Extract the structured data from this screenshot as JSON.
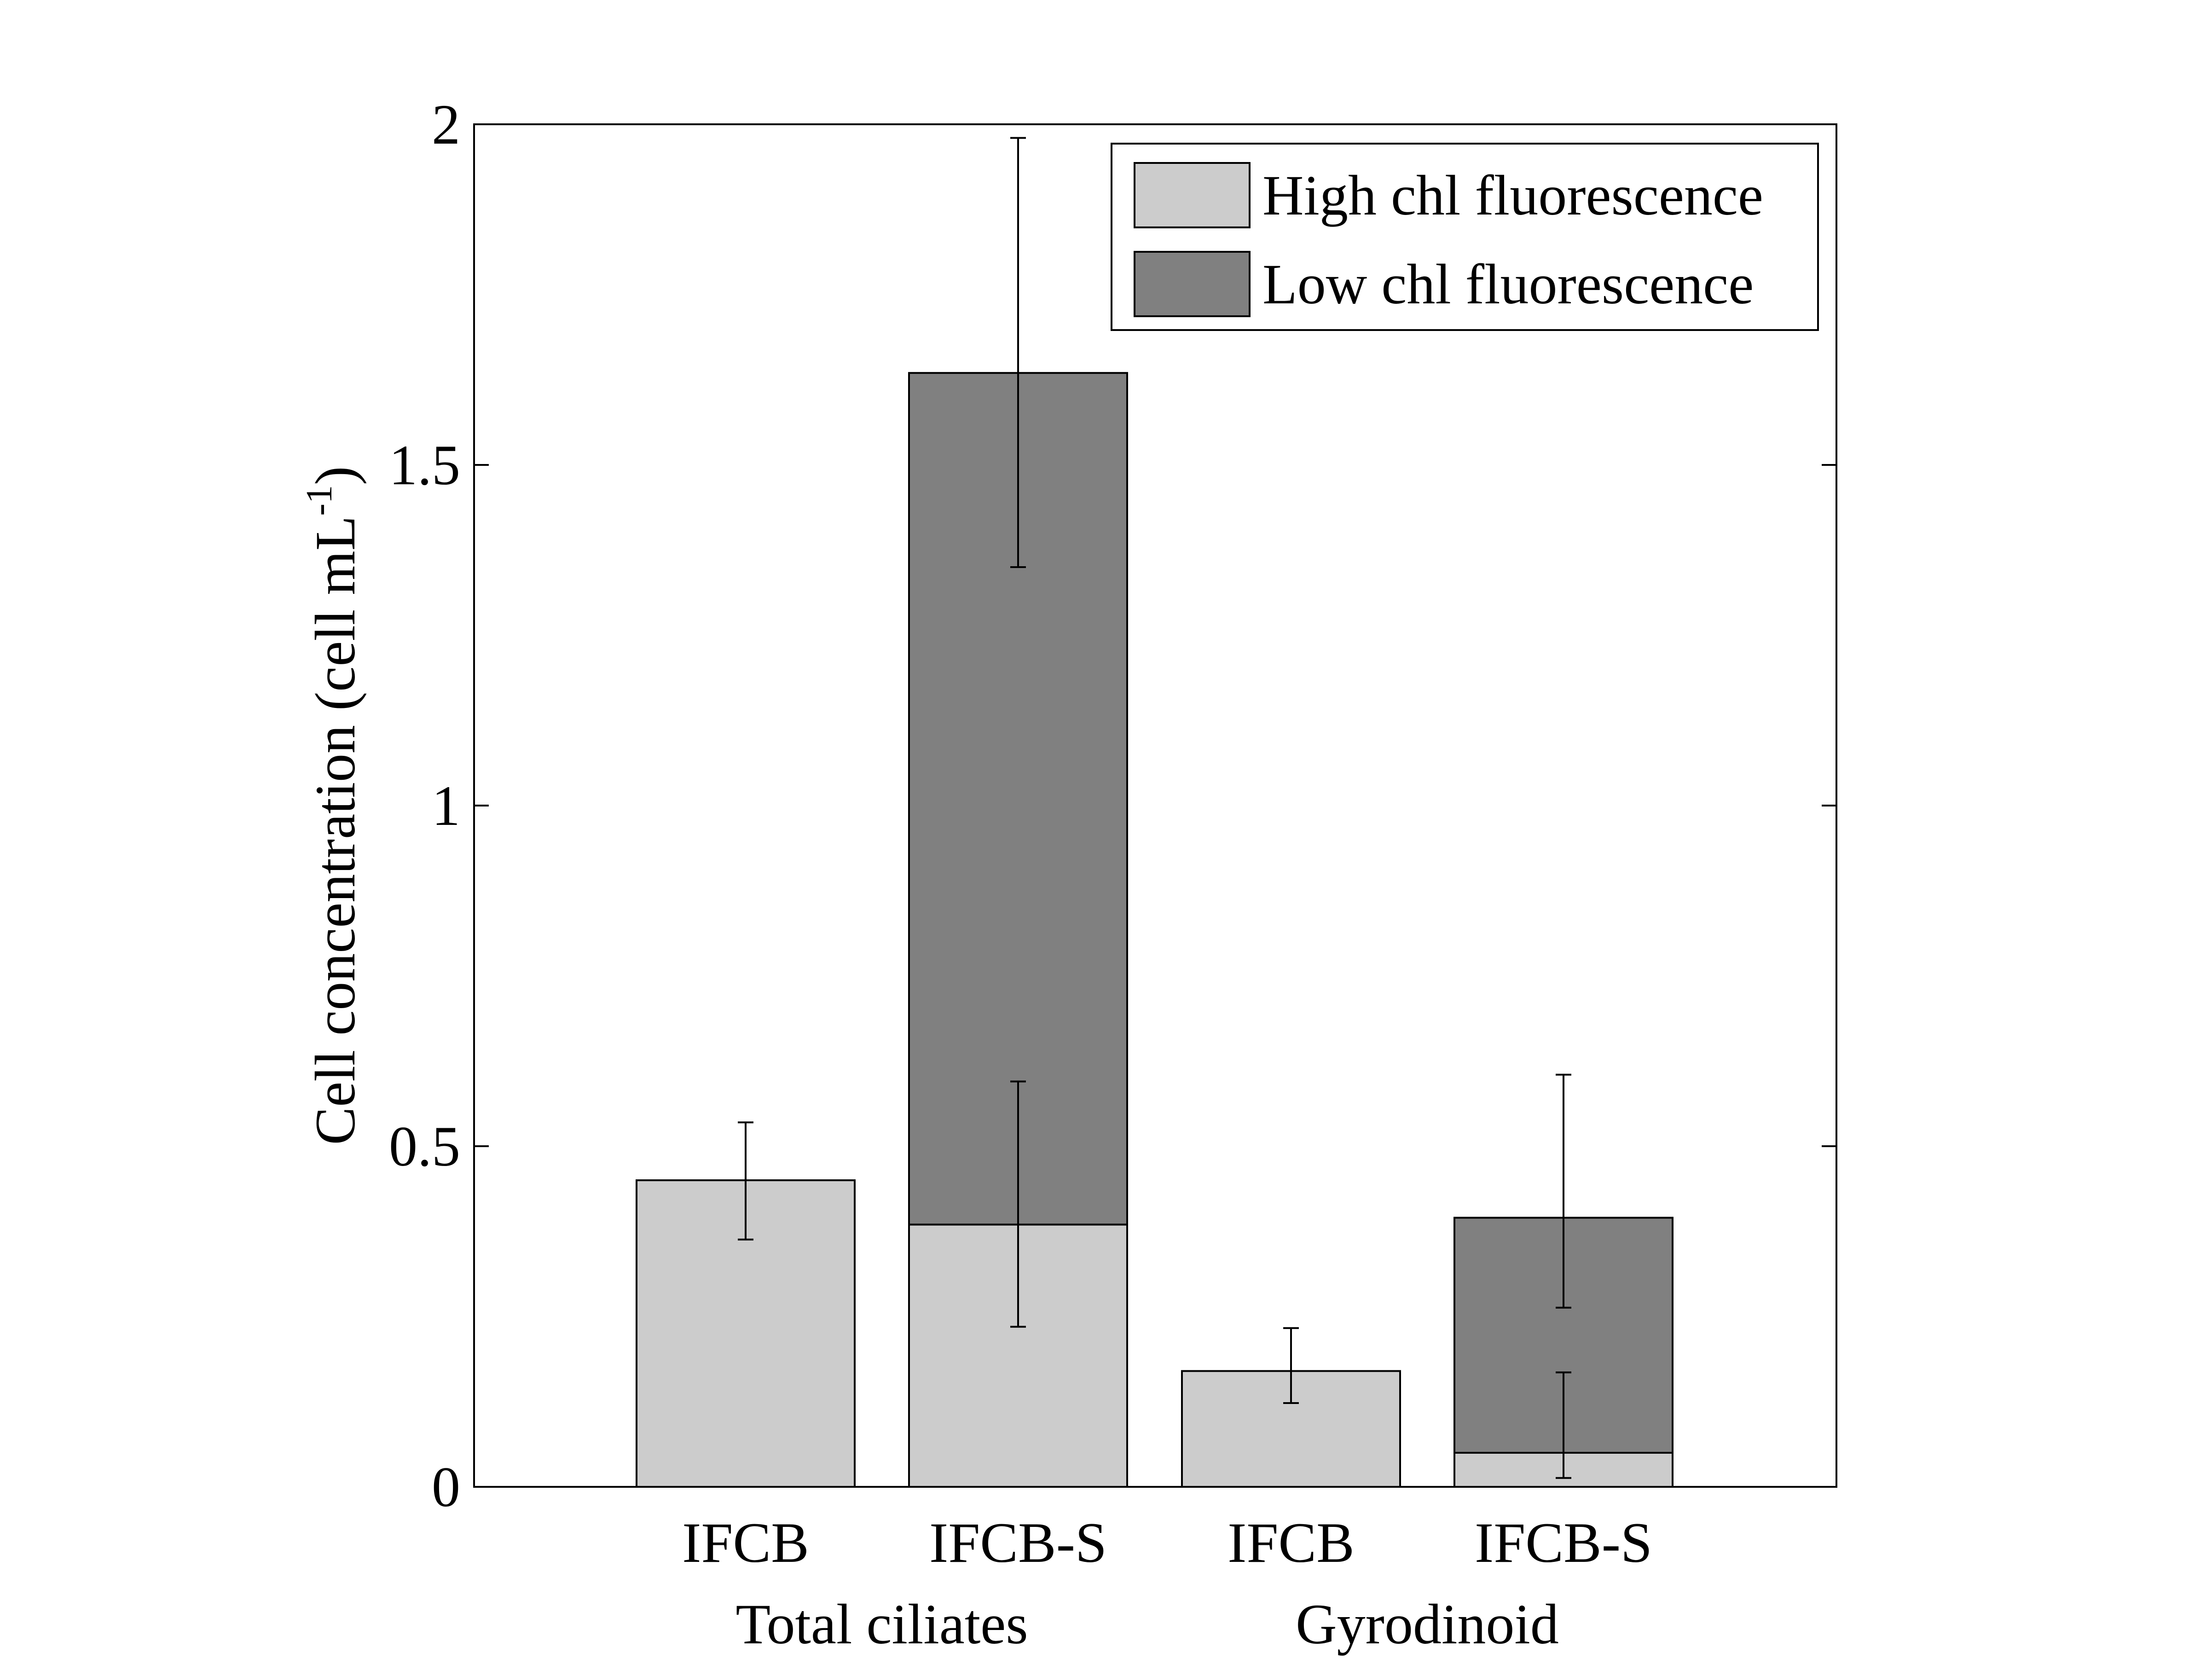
{
  "chart_data": {
    "type": "bar",
    "stacked": true,
    "title": "",
    "xlabel": "",
    "ylabel": "Cell concentration (cell mL",
    "ylabel_superscript": "-1",
    "ylabel_close": ")",
    "ylim": [
      0,
      2
    ],
    "yticks": [
      "0",
      "0.5",
      "1",
      "1.5",
      "2"
    ],
    "grid": false,
    "legend_position": "top-right",
    "categories": [
      "IFCB",
      "IFCB-S",
      "IFCB",
      "IFCB-S"
    ],
    "groups": [
      "Total ciliates",
      "Gyrodinoid"
    ],
    "series": [
      {
        "name": "High chl fluorescence",
        "color": "#cccccc",
        "values": [
          0.45,
          0.385,
          0.17,
          0.05
        ],
        "error_low": [
          0.363,
          0.235,
          0.123,
          0.013
        ],
        "error_high": [
          0.535,
          0.595,
          0.233,
          0.168
        ]
      },
      {
        "name": "Low chl fluorescence",
        "color": "#808080",
        "values": [
          0,
          1.25,
          0,
          0.345
        ],
        "error_low": [
          null,
          1.35,
          null,
          0.263
        ],
        "error_high": [
          null,
          1.98,
          null,
          0.605
        ]
      }
    ]
  }
}
